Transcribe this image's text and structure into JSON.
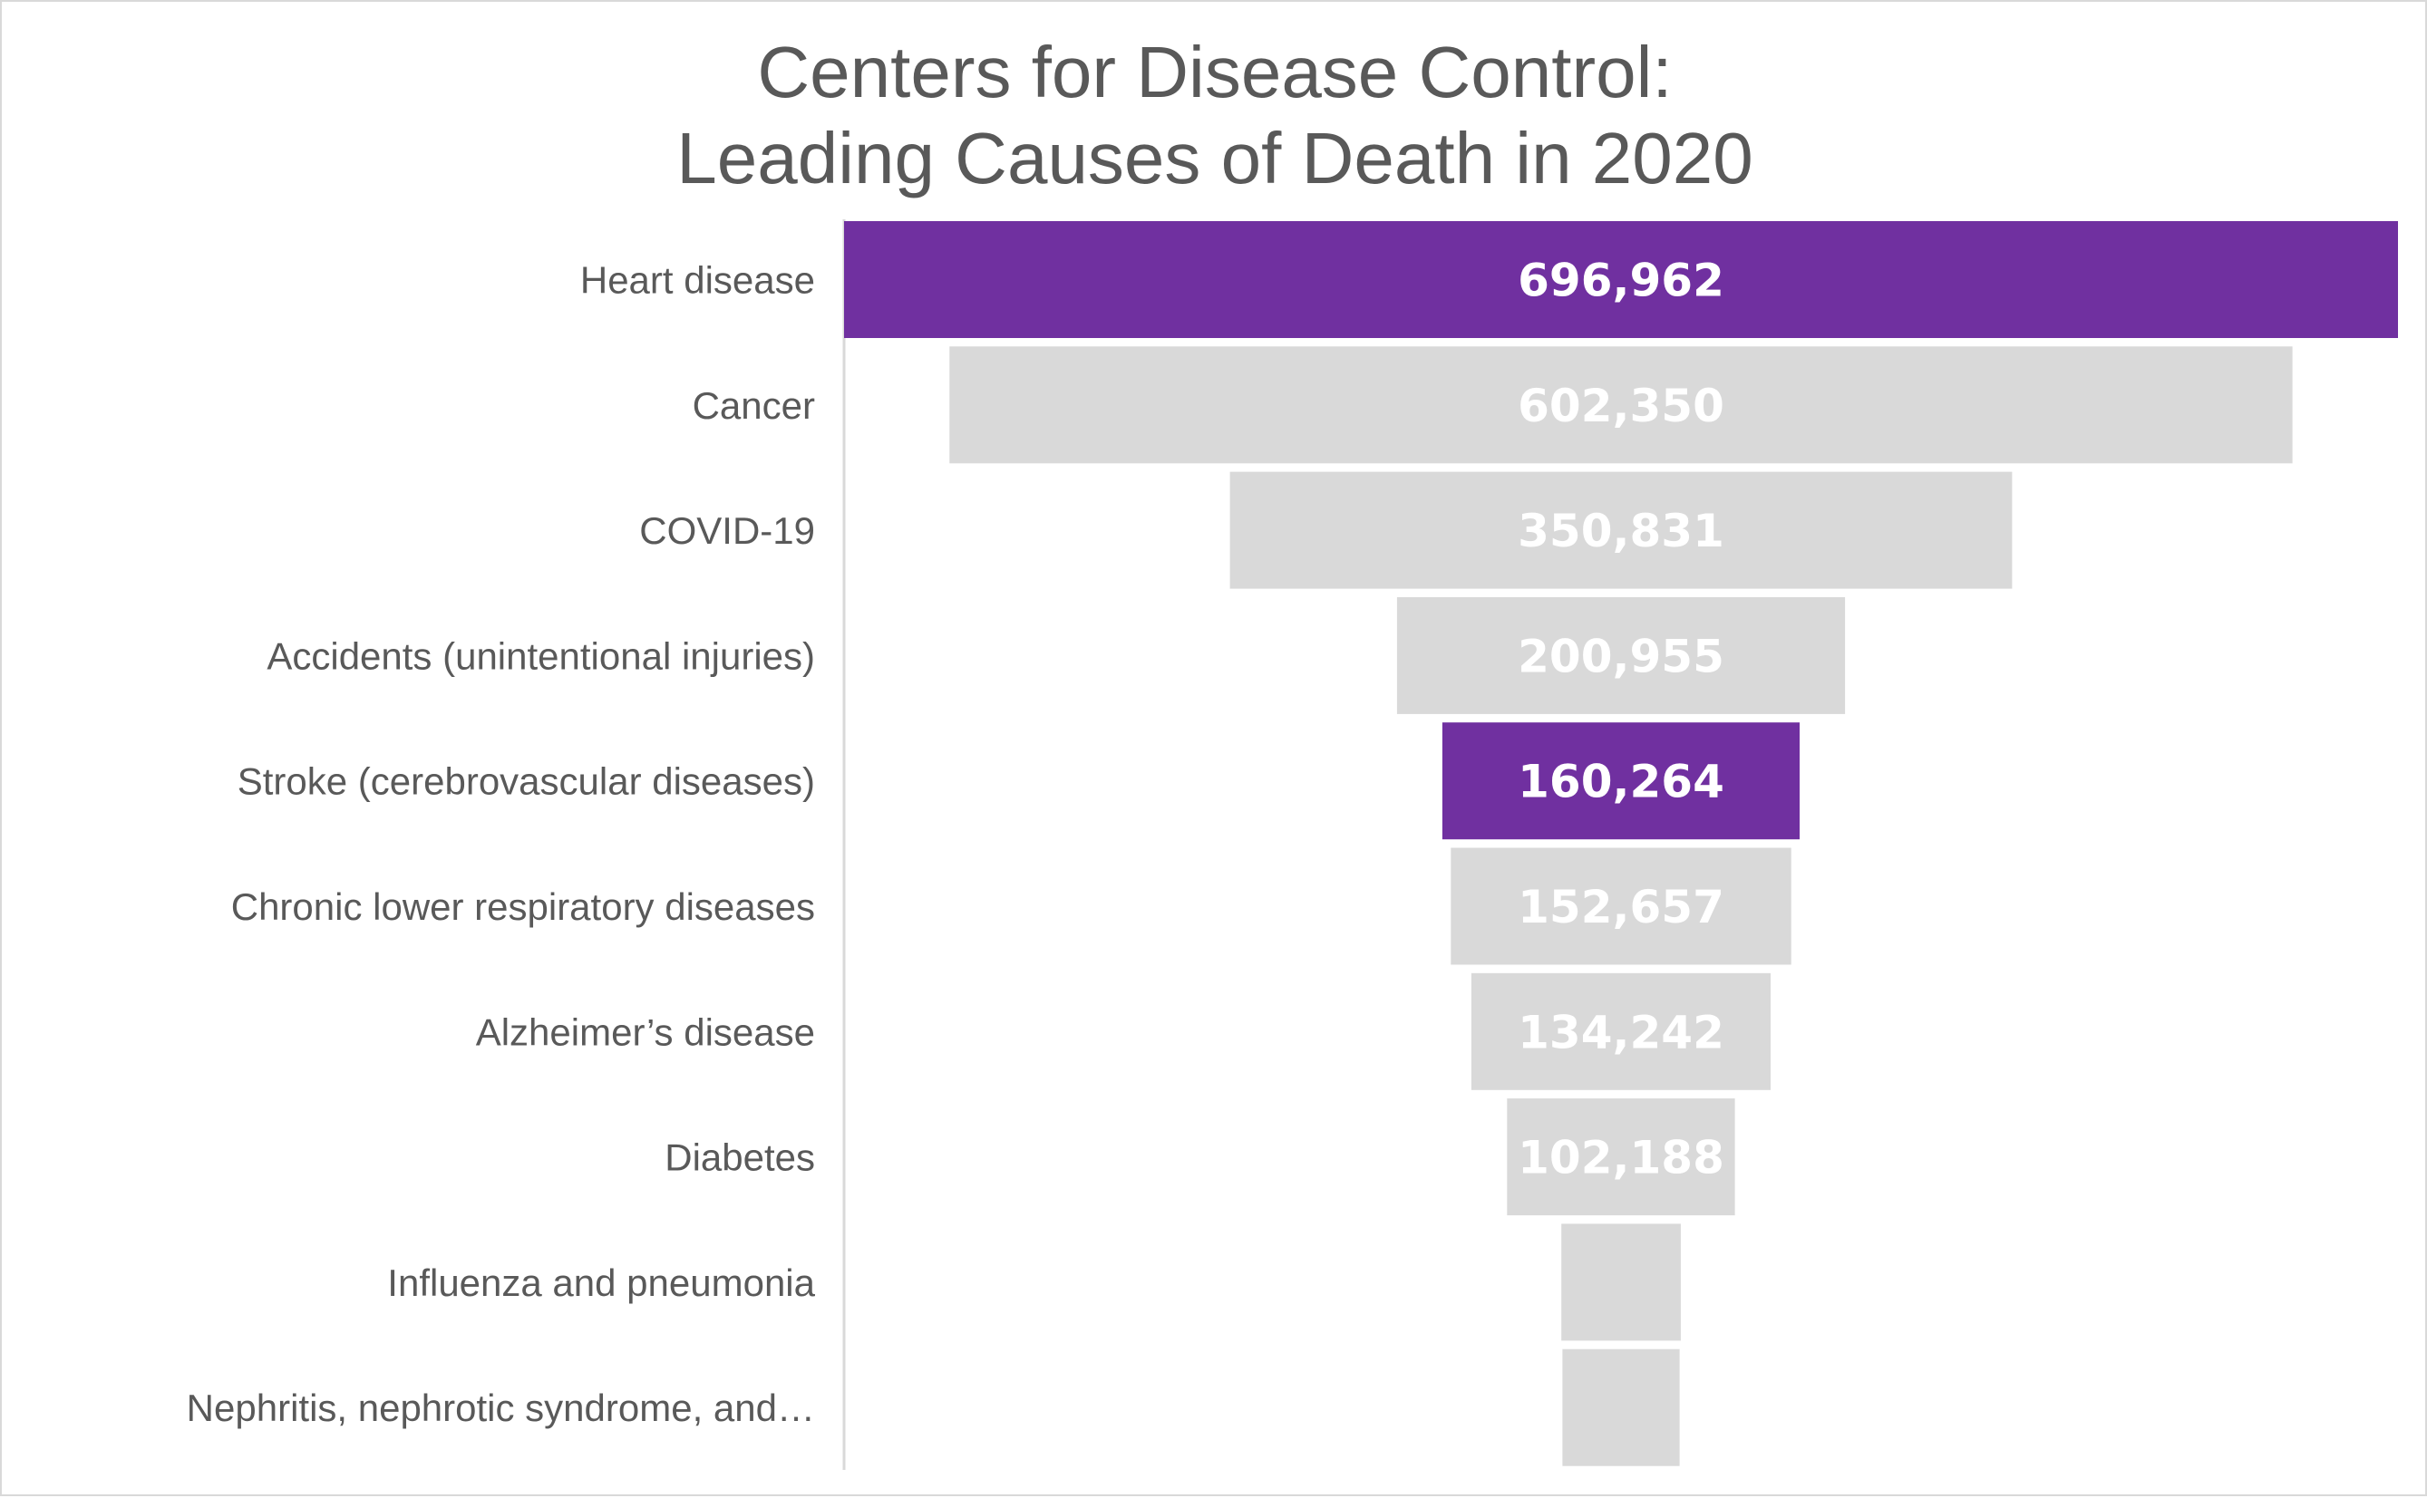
{
  "chart_data": {
    "type": "bar",
    "subtype": "funnel",
    "orientation": "horizontal",
    "title": "Centers for Disease Control:",
    "subtitle": "Leading Causes of Death in 2020",
    "categories": [
      "Heart disease",
      "Cancer",
      "COVID-19",
      "Accidents (unintentional injuries)",
      "Stroke (cerebrovascular diseases)",
      "Chronic lower respiratory diseases",
      "Alzheimer’s disease",
      "Diabetes",
      "Influenza and pneumonia",
      "Nephritis, nephrotic syndrome, and…"
    ],
    "values": [
      696962,
      602350,
      350831,
      200955,
      160264,
      152657,
      134242,
      102188,
      53544,
      52547
    ],
    "value_labels": [
      "696,962",
      "602,350",
      "350,831",
      "200,955",
      "160,264",
      "152,657",
      "134,242",
      "102,188",
      "",
      ""
    ],
    "highlighted": [
      true,
      false,
      false,
      false,
      true,
      false,
      false,
      false,
      false,
      false
    ],
    "colors": {
      "highlight": "#7030a0",
      "default": "#d9d9d9",
      "label_text": "#595959",
      "value_text": "#ffffff",
      "axis_line": "#d9d9d9",
      "border": "#d9d9d9"
    },
    "xlim": [
      0,
      696962
    ],
    "grid": false,
    "legend": "none"
  }
}
